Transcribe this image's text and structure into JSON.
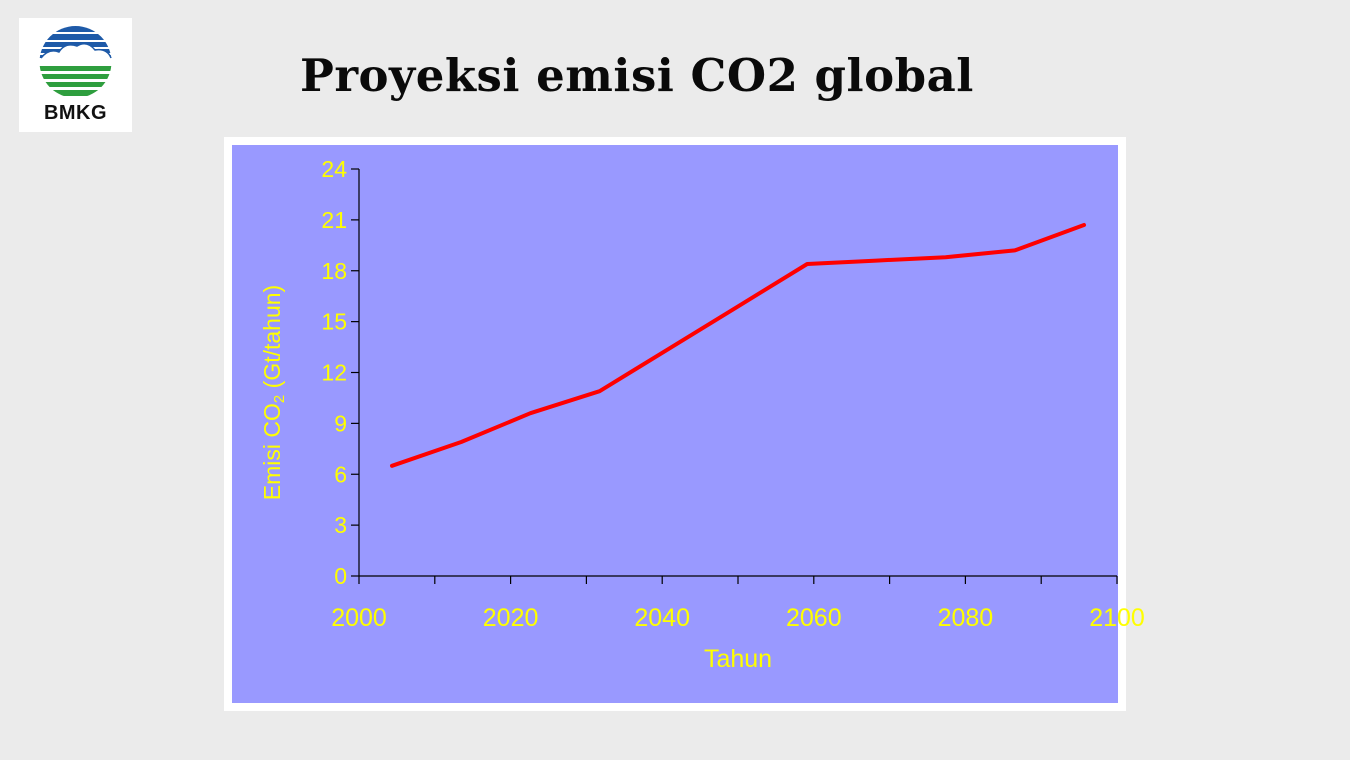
{
  "logo": {
    "text": "BMKG"
  },
  "slide": {
    "title": "Proyeksi emisi CO2 global"
  },
  "chart_data": {
    "type": "line",
    "title": "",
    "xlabel": "Tahun",
    "ylabel_main": "Emisi CO",
    "ylabel_sub": "2",
    "ylabel_unit": " (Gt/tahun)",
    "xlim": [
      2000,
      2100
    ],
    "ylim": [
      0,
      24
    ],
    "xticks": [
      "2000",
      "2020",
      "2040",
      "2060",
      "2080",
      "2100"
    ],
    "yticks": [
      "0",
      "3",
      "6",
      "9",
      "12",
      "15",
      "18",
      "21",
      "24"
    ],
    "grid": false,
    "colors": {
      "plot_area": "#9999ff",
      "line": "#ff0000",
      "text": "#ffff00",
      "axis": "#000000"
    },
    "series": [
      {
        "x": [
          2000,
          2010,
          2020,
          2030,
          2040,
          2050,
          2060,
          2070,
          2080,
          2090,
          2100
        ],
        "values": [
          6.5,
          7.9,
          9.6,
          10.9,
          13.4,
          15.9,
          18.4,
          18.6,
          18.8,
          19.2,
          20.7
        ]
      }
    ]
  }
}
